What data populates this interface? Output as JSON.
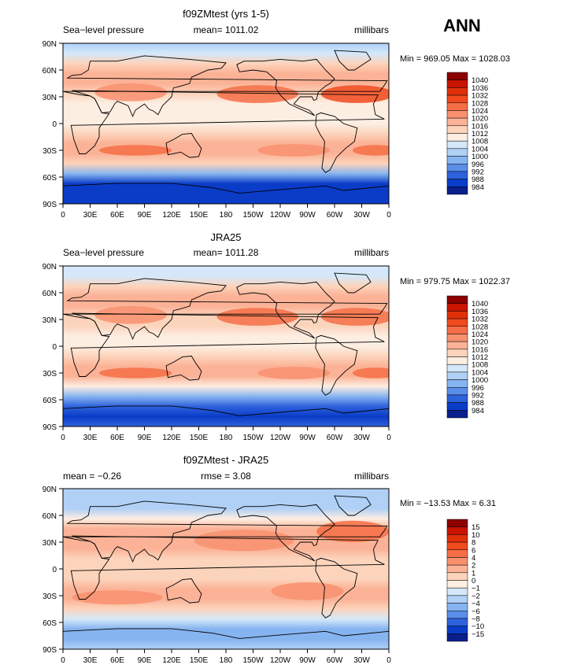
{
  "season": "ANN",
  "x_ticks": [
    "0",
    "30E",
    "60E",
    "90E",
    "120E",
    "150E",
    "180",
    "150W",
    "120W",
    "90W",
    "60W",
    "30W",
    "0"
  ],
  "y_ticks": [
    "90N",
    "60N",
    "30N",
    "0",
    "30S",
    "60S",
    "90S"
  ],
  "chart_data": [
    {
      "type": "heatmap",
      "title": "f09ZMtest (yrs 1-5)",
      "left_label": "Sea−level pressure",
      "center_label": "mean= 1011.02",
      "right_label": "millibars",
      "minmax": "Min = 969.05 Max = 1028.03",
      "colorbar_labels": [
        "1040",
        "1036",
        "1032",
        "1028",
        "1024",
        "1020",
        "1016",
        "1012",
        "1008",
        "1004",
        "1000",
        "996",
        "992",
        "988",
        "984"
      ],
      "colorbar_colors": [
        "#8c0000",
        "#c81400",
        "#e0300a",
        "#f04a1e",
        "#f56e46",
        "#f89070",
        "#fbb296",
        "#fcd4bc",
        "#fdeee2",
        "#d4e8fa",
        "#b0d0f6",
        "#86b4f0",
        "#5a8ee8",
        "#2e62dc",
        "#0a3cc8",
        "#0a1e8c"
      ],
      "lat_profile": [
        1003,
        1006,
        1012,
        1017,
        1017,
        1014,
        1011,
        1010,
        1010,
        1013,
        1018,
        1017,
        1012,
        998,
        986,
        985,
        987
      ],
      "amp_map": 1.0
    },
    {
      "type": "heatmap",
      "title": "JRA25",
      "left_label": "Sea−level pressure",
      "center_label": "mean= 1011.28",
      "right_label": "millibars",
      "minmax": "Min = 979.75 Max = 1022.37",
      "colorbar_labels": [
        "1040",
        "1036",
        "1032",
        "1028",
        "1024",
        "1020",
        "1016",
        "1012",
        "1008",
        "1004",
        "1000",
        "996",
        "992",
        "988",
        "984"
      ],
      "colorbar_colors": [
        "#8c0000",
        "#c81400",
        "#e0300a",
        "#f04a1e",
        "#f56e46",
        "#f89070",
        "#fbb296",
        "#fcd4bc",
        "#fdeee2",
        "#d4e8fa",
        "#b0d0f6",
        "#86b4f0",
        "#5a8ee8",
        "#2e62dc",
        "#0a3cc8",
        "#0a1e8c"
      ],
      "lat_profile": [
        1004,
        1007,
        1012,
        1016,
        1016,
        1014,
        1012,
        1011,
        1011,
        1013,
        1017,
        1016,
        1011,
        999,
        988,
        987,
        989
      ],
      "amp_map": 0.8
    },
    {
      "type": "heatmap",
      "title": "f09ZMtest - JRA25",
      "left_label": "mean =   −0.26",
      "center_label": "rmse =    3.08",
      "right_label": "millibars",
      "minmax": "Min = −13.53 Max =    6.31",
      "colorbar_labels": [
        "15",
        "10",
        "8",
        "6",
        "4",
        "2",
        "1",
        "0",
        "−1",
        "−2",
        "−4",
        "−6",
        "−8",
        "−10",
        "−15"
      ],
      "colorbar_colors": [
        "#8c0000",
        "#c81400",
        "#e0300a",
        "#f04a1e",
        "#f56e46",
        "#f89070",
        "#fbb296",
        "#fcd4bc",
        "#fdeee2",
        "#d4e8fa",
        "#b0d0f6",
        "#86b4f0",
        "#5a8ee8",
        "#2e62dc",
        "#0a3cc8",
        "#0a1e8c"
      ],
      "lat_profile": [
        -4,
        -4,
        -3,
        -1,
        1,
        1.5,
        1,
        0.5,
        0.5,
        0.6,
        1.5,
        1.2,
        0.5,
        -2,
        -5,
        -5,
        -3
      ],
      "amp_map": 1.2
    }
  ]
}
